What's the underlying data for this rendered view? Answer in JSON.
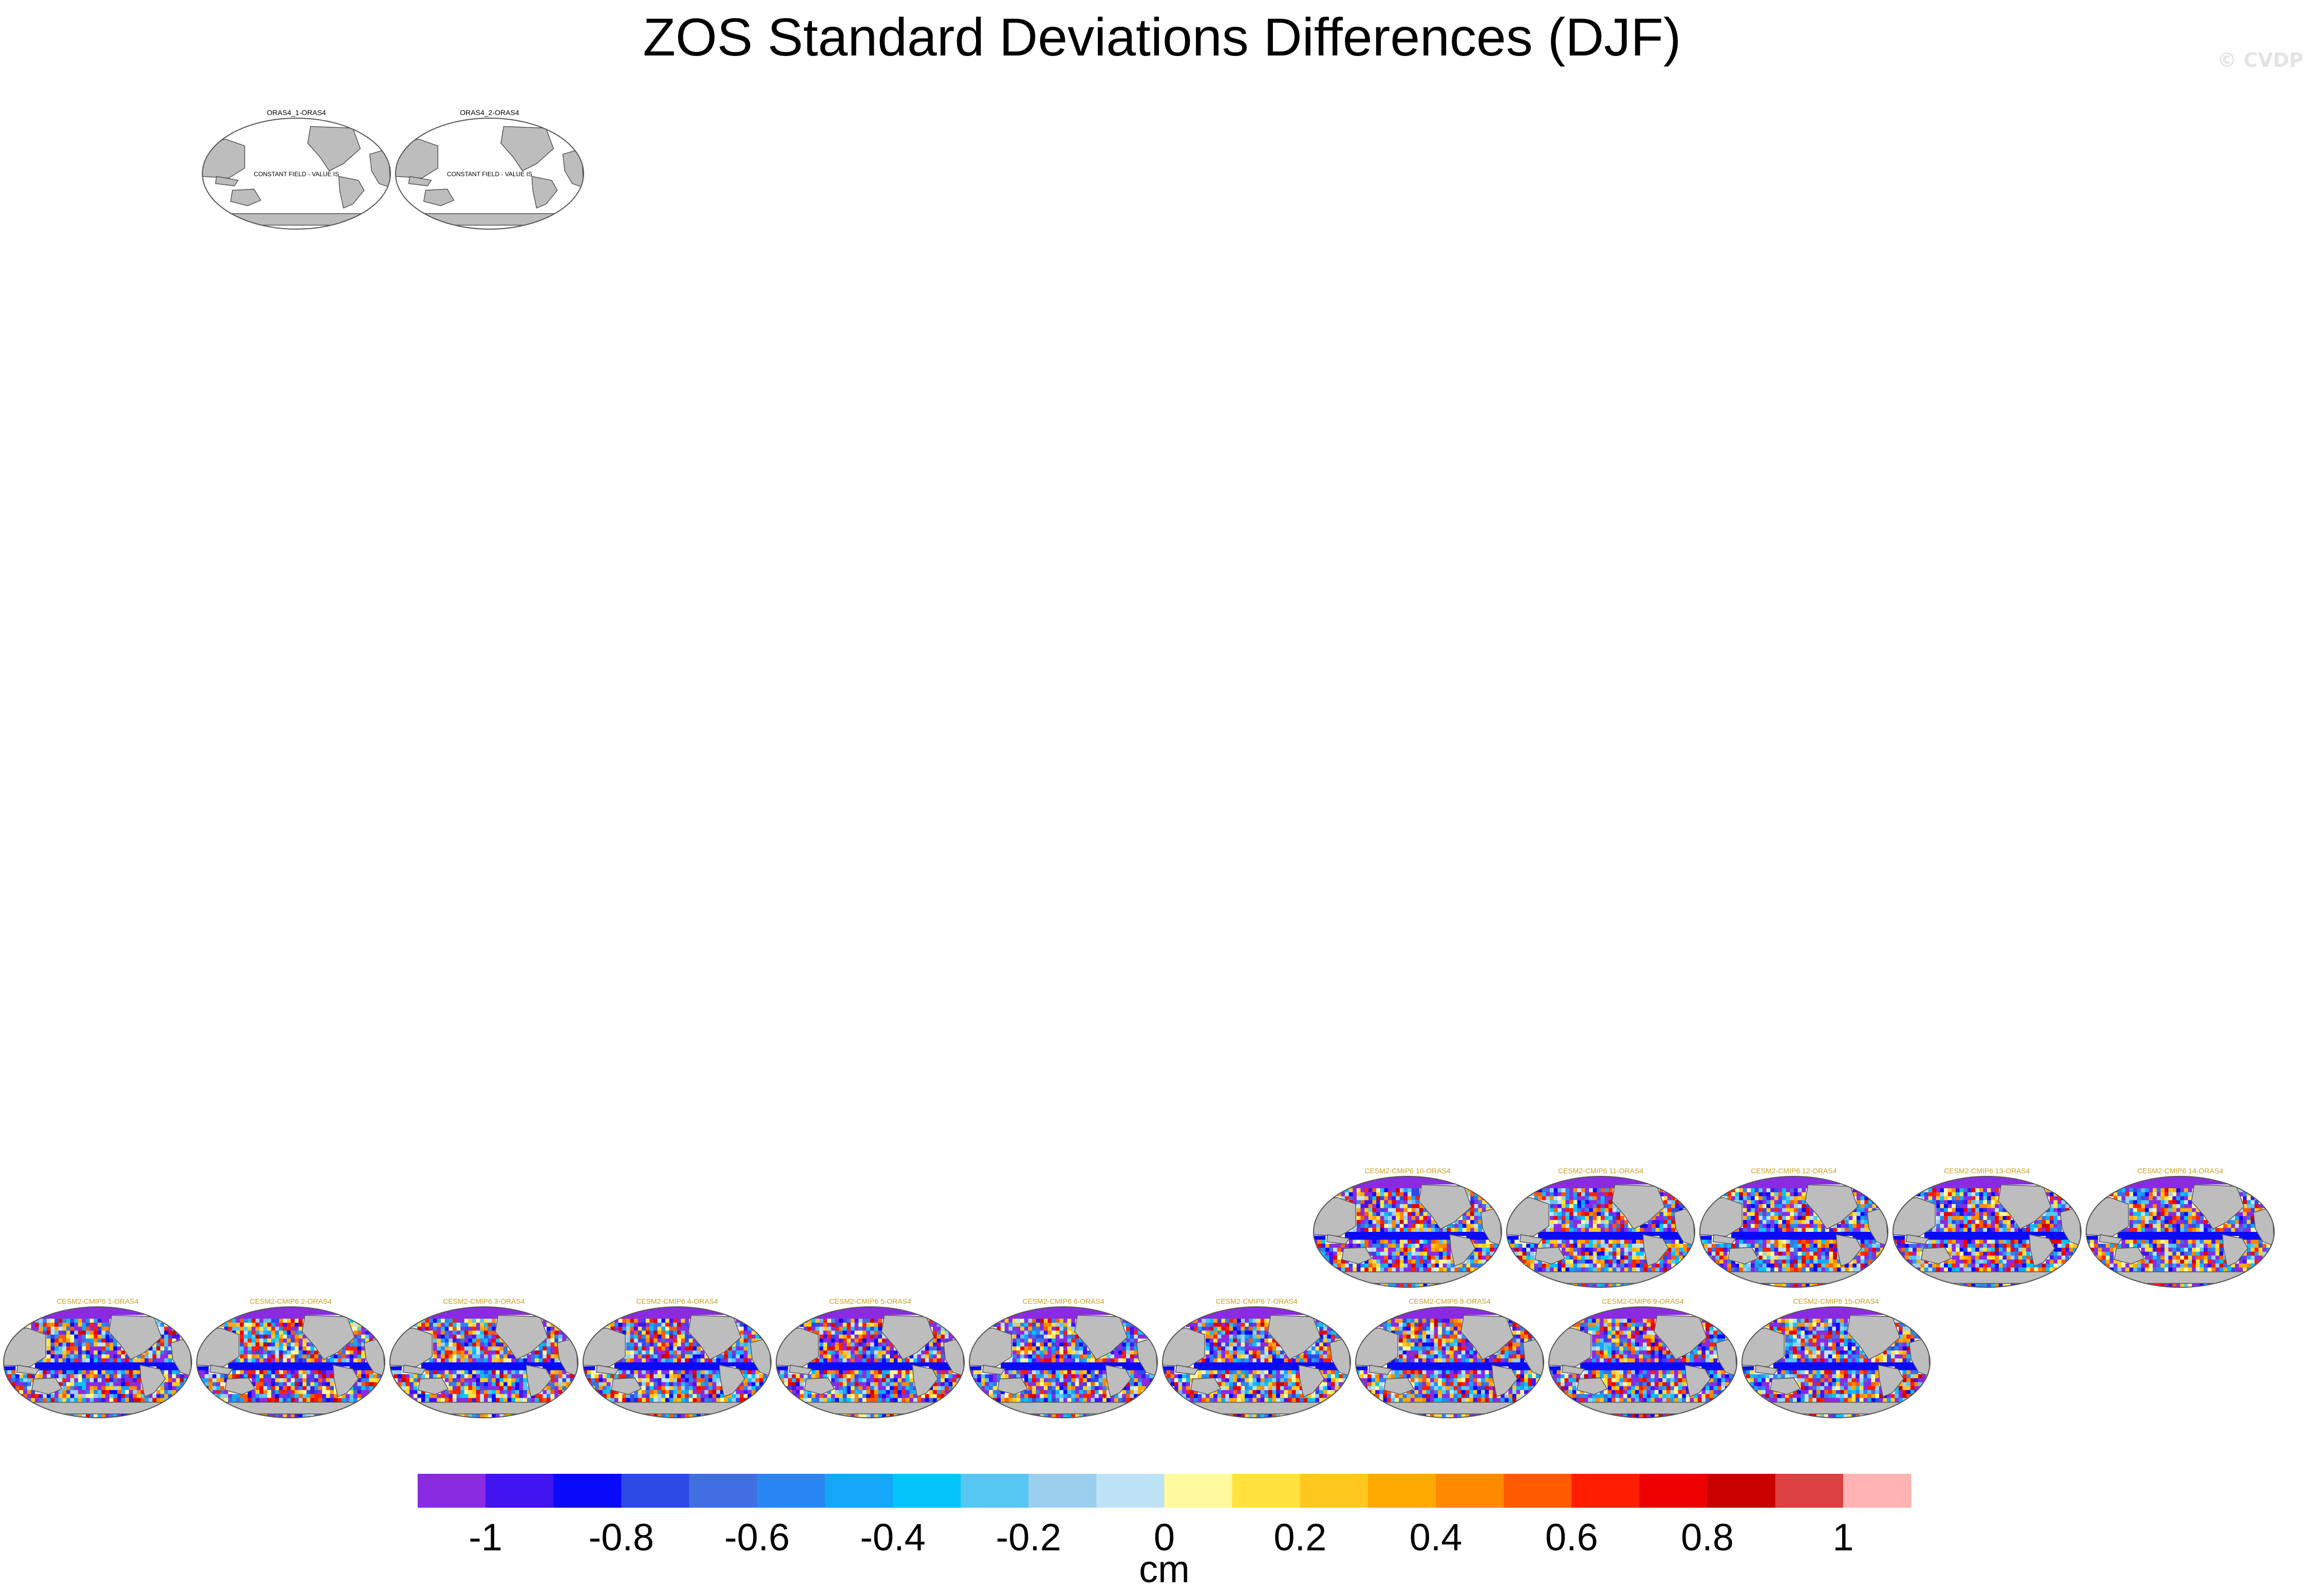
{
  "title": "ZOS Standard Deviations Differences (DJF)",
  "credit": "© CVDP",
  "chart_data": {
    "type": "heatmap",
    "title": "ZOS Standard Deviations Differences (DJF)",
    "projection": "global map, Robinson-style, Pacific-centred",
    "panels": [
      {
        "title": "ORAS4_1-ORAS4",
        "note": "CONSTANT FIELD - VALUE IS",
        "field": "constant"
      },
      {
        "title": "ORAS4_2-ORAS4",
        "note": "CONSTANT FIELD - VALUE IS",
        "field": "constant"
      },
      {
        "title": "CESM2-CMIP6 1-ORAS4",
        "field": "gridded"
      },
      {
        "title": "CESM2-CMIP6 2-ORAS4",
        "field": "gridded"
      },
      {
        "title": "CESM2-CMIP6 3-ORAS4",
        "field": "gridded"
      },
      {
        "title": "CESM2-CMIP6 4-ORAS4",
        "field": "gridded"
      },
      {
        "title": "CESM2-CMIP6 5-ORAS4",
        "field": "gridded"
      },
      {
        "title": "CESM2-CMIP6 6-ORAS4",
        "field": "gridded"
      },
      {
        "title": "CESM2-CMIP6 7-ORAS4",
        "field": "gridded"
      },
      {
        "title": "CESM2-CMIP6 8-ORAS4",
        "field": "gridded"
      },
      {
        "title": "CESM2-CMIP6 9-ORAS4",
        "field": "gridded"
      },
      {
        "title": "CESM2-CMIP6 10-ORAS4",
        "field": "gridded"
      },
      {
        "title": "CESM2-CMIP6 11-ORAS4",
        "field": "gridded"
      },
      {
        "title": "CESM2-CMIP6 12-ORAS4",
        "field": "gridded"
      },
      {
        "title": "CESM2-CMIP6 13-ORAS4",
        "field": "gridded"
      },
      {
        "title": "CESM2-CMIP6 14-ORAS4",
        "field": "gridded"
      },
      {
        "title": "CESM2-CMIP6 15-ORAS4",
        "field": "gridded"
      }
    ],
    "colorbar": {
      "unit": "cm",
      "levels": [
        -1.1,
        -1,
        -0.9,
        -0.8,
        -0.7,
        -0.6,
        -0.5,
        -0.4,
        -0.3,
        -0.2,
        -0.1,
        0,
        0.1,
        0.2,
        0.3,
        0.4,
        0.5,
        0.6,
        0.7,
        0.8,
        0.9,
        1,
        1.1
      ],
      "tick_labels": [
        "-1",
        "-0.8",
        "-0.6",
        "-0.4",
        "-0.2",
        "0",
        "0.2",
        "0.4",
        "0.6",
        "0.8",
        "1"
      ],
      "colors": [
        "#8a2be2",
        "#4214f0",
        "#0a0afa",
        "#2e4ae6",
        "#3f6fe3",
        "#2a86f4",
        "#14a6f8",
        "#05c4fc",
        "#56c6f2",
        "#9ad0ee",
        "#bfe3f6",
        "#fffa9b",
        "#ffe23d",
        "#ffc81f",
        "#ffaa00",
        "#ff8a00",
        "#ff5a00",
        "#ff1e00",
        "#ec0000",
        "#c80000",
        "#dc4040",
        "#ffb3b3"
      ]
    },
    "land_color": "#bdbdbd",
    "grid": false
  }
}
